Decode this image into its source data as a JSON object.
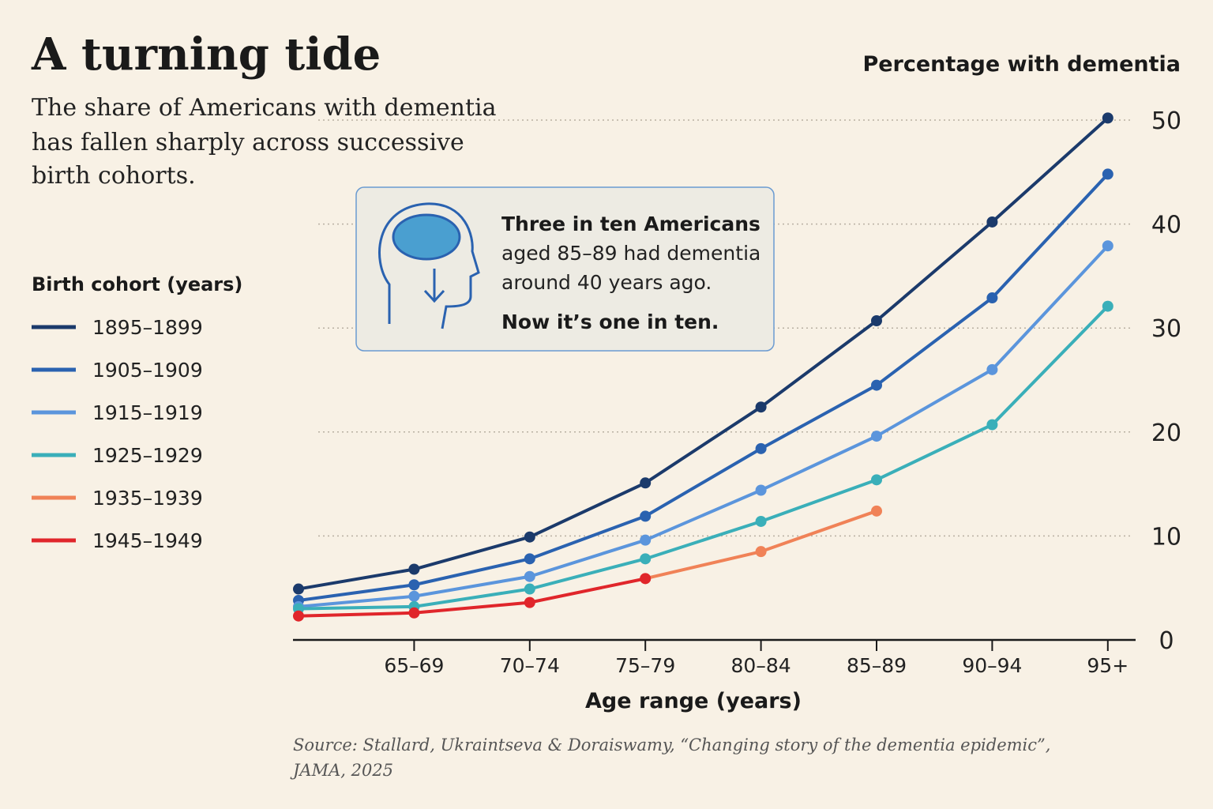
{
  "chart_data": {
    "type": "line",
    "title": "A turning tide",
    "subtitle": [
      "The share of Americans with dementia",
      "has fallen sharply across successive",
      "birth cohorts."
    ],
    "y_label": "Percentage with dementia",
    "x_label": "Age range (years)",
    "legend_title": "Birth cohort (years)",
    "annotation": [
      "Three in ten Americans",
      "aged 85–89 had dementia",
      "around 40 years ago.",
      "Now it’s one in ten."
    ],
    "source": [
      "Source: Stallard, Ukraintseva & Doraiswamy, “Changing story of the dementia epidemic”,",
      "JAMA, 2025"
    ],
    "categories": [
      null,
      "65–69",
      "70–74",
      "75–79",
      "80–84",
      "85–89",
      "90–94",
      "95+"
    ],
    "ylim": [
      0,
      50
    ],
    "yticks": [
      0,
      10,
      20,
      30,
      40,
      50
    ],
    "grid": true,
    "series": [
      {
        "name": "1895–1899",
        "color": "#1b3a6b",
        "values": [
          4.9,
          6.8,
          9.9,
          15.1,
          22.4,
          30.7,
          40.2,
          50.2
        ]
      },
      {
        "name": "1905–1909",
        "color": "#2a62b0",
        "values": [
          3.8,
          5.3,
          7.8,
          11.9,
          18.4,
          24.5,
          32.9,
          44.8
        ]
      },
      {
        "name": "1915–1919",
        "color": "#5b95dc",
        "values": [
          3.2,
          4.2,
          6.1,
          9.6,
          14.4,
          19.6,
          26.0,
          37.9
        ]
      },
      {
        "name": "1925–1929",
        "color": "#3aafb9",
        "values": [
          3.0,
          3.2,
          4.9,
          7.8,
          11.4,
          15.4,
          20.7,
          32.1
        ]
      },
      {
        "name": "1935–1939",
        "color": "#f08257",
        "values": [
          null,
          null,
          null,
          5.9,
          8.5,
          12.4,
          null,
          null
        ]
      },
      {
        "name": "1945–1949",
        "color": "#e0262b",
        "values": [
          2.3,
          2.6,
          3.6,
          5.9,
          null,
          null,
          null,
          null
        ]
      }
    ]
  }
}
